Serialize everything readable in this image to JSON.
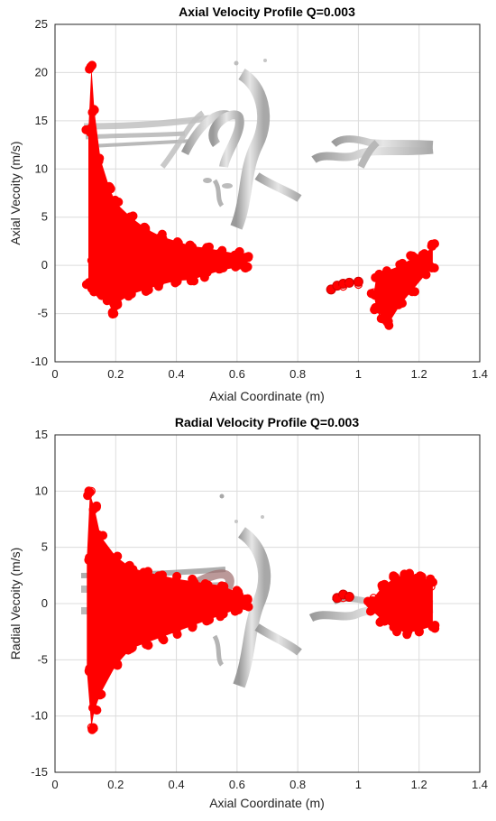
{
  "chart_data": [
    {
      "type": "scatter",
      "title": "Axial Velocity Profile Q=0.003",
      "xlabel": "Axial Coordinate (m)",
      "ylabel": "Axial Vecoity (m/s)",
      "xlim": [
        0,
        1.4
      ],
      "ylim": [
        -10,
        25
      ],
      "xticks": [
        0,
        0.2,
        0.4,
        0.6,
        0.8,
        1,
        1.2,
        1.4
      ],
      "xtick_labels": [
        "0",
        "0.2",
        "0.4",
        "0.6",
        "0.8",
        "1",
        "1.2",
        "1.4"
      ],
      "yticks": [
        -10,
        -5,
        0,
        5,
        10,
        15,
        20,
        25
      ],
      "ytick_labels": [
        "-10",
        "-5",
        "0",
        "5",
        "10",
        "15",
        "20",
        "25"
      ],
      "grid": true,
      "marker_color": "#ff0000",
      "vortex_color": "#c8c8c8",
      "series": [
        {
          "marker": "o",
          "x": [
            0.12,
            0.12,
            0.13,
            0.15,
            0.18,
            0.2,
            0.25,
            0.3,
            0.35,
            0.4,
            0.45,
            0.5,
            0.55,
            0.6,
            0.62,
            0.19,
            0.95,
            1.0,
            1.05,
            1.08,
            1.1,
            1.12,
            1.15,
            1.18,
            1.2,
            1.22,
            1.24
          ],
          "y": [
            20.6,
            0.5,
            12.0,
            9.5,
            6.5,
            5.0,
            3.5,
            2.5,
            2.0,
            1.5,
            1.2,
            1.0,
            0.8,
            0.5,
            0.5,
            -4.8,
            -2.2,
            -2.0,
            -2.8,
            -5.0,
            -5.8,
            -4.0,
            -1.5,
            0.0,
            0.5,
            1.0,
            2.0
          ],
          "envelope_upper": [
            [
              0.11,
              14.0
            ],
            [
              0.12,
              20.6
            ],
            [
              0.13,
              16.0
            ],
            [
              0.15,
              11.0
            ],
            [
              0.18,
              8.0
            ],
            [
              0.2,
              6.5
            ],
            [
              0.25,
              5.0
            ],
            [
              0.3,
              3.8
            ],
            [
              0.35,
              3.0
            ],
            [
              0.4,
              2.5
            ],
            [
              0.45,
              2.0
            ],
            [
              0.5,
              1.8
            ],
            [
              0.55,
              1.5
            ],
            [
              0.6,
              1.2
            ],
            [
              0.635,
              1.0
            ]
          ],
          "envelope_lower": [
            [
              0.635,
              0.0
            ],
            [
              0.6,
              -0.2
            ],
            [
              0.55,
              -0.5
            ],
            [
              0.5,
              -1.0
            ],
            [
              0.45,
              -1.5
            ],
            [
              0.4,
              -1.6
            ],
            [
              0.35,
              -2.0
            ],
            [
              0.3,
              -2.5
            ],
            [
              0.25,
              -3.0
            ],
            [
              0.2,
              -4.0
            ],
            [
              0.19,
              -4.8
            ],
            [
              0.17,
              -3.5
            ],
            [
              0.15,
              -3.0
            ],
            [
              0.13,
              -2.5
            ],
            [
              0.11,
              -2.0
            ]
          ],
          "cluster2_upper": [
            [
              1.06,
              -1.0
            ],
            [
              1.1,
              -0.5
            ],
            [
              1.14,
              0.0
            ],
            [
              1.18,
              0.8
            ],
            [
              1.22,
              1.2
            ],
            [
              1.245,
              2.0
            ]
          ],
          "cluster2_lower": [
            [
              1.245,
              0.0
            ],
            [
              1.22,
              -1.0
            ],
            [
              1.18,
              -2.5
            ],
            [
              1.14,
              -4.0
            ],
            [
              1.1,
              -6.0
            ],
            [
              1.08,
              -5.5
            ],
            [
              1.06,
              -4.5
            ],
            [
              1.05,
              -3.0
            ]
          ],
          "cluster3": [
            [
              0.91,
              -2.5
            ],
            [
              0.93,
              -2.1
            ],
            [
              0.95,
              -1.9
            ],
            [
              0.97,
              -1.8
            ],
            [
              1.0,
              -1.7
            ]
          ]
        }
      ]
    },
    {
      "type": "scatter",
      "title": "Radial Velocity Profile Q=0.003",
      "xlabel": "Axial Coordinate (m)",
      "ylabel": "Radial Vecoity (m/s)",
      "xlim": [
        0,
        1.4
      ],
      "ylim": [
        -15,
        15
      ],
      "xticks": [
        0,
        0.2,
        0.4,
        0.6,
        0.8,
        1,
        1.2,
        1.4
      ],
      "xtick_labels": [
        "0",
        "0.2",
        "0.4",
        "0.6",
        "0.8",
        "1",
        "1.2",
        "1.4"
      ],
      "yticks": [
        -15,
        -10,
        -5,
        0,
        5,
        10,
        15
      ],
      "ytick_labels": [
        "-15",
        "-10",
        "-5",
        "0",
        "5",
        "10",
        "15"
      ],
      "grid": true,
      "marker_color": "#ff0000",
      "vortex_color": "#c8c8c8",
      "series": [
        {
          "marker": "o",
          "x": [
            0.12,
            0.12,
            0.13,
            0.15,
            0.2,
            0.25,
            0.3,
            0.35,
            0.4,
            0.45,
            0.5,
            0.55,
            0.6,
            0.95,
            1.05,
            1.1,
            1.15,
            1.2,
            1.24
          ],
          "y": [
            10.0,
            -11.0,
            8.5,
            6.0,
            4.0,
            3.0,
            2.5,
            2.2,
            1.8,
            1.6,
            1.2,
            1.0,
            0.5,
            0.5,
            0.5,
            1.5,
            2.5,
            2.0,
            1.5
          ],
          "envelope_upper": [
            [
              0.105,
              4.0
            ],
            [
              0.115,
              9.8
            ],
            [
              0.13,
              8.5
            ],
            [
              0.15,
              6.0
            ],
            [
              0.2,
              4.2
            ],
            [
              0.25,
              3.2
            ],
            [
              0.3,
              2.8
            ],
            [
              0.35,
              2.5
            ],
            [
              0.4,
              2.2
            ],
            [
              0.45,
              2.0
            ],
            [
              0.5,
              1.8
            ],
            [
              0.55,
              1.6
            ],
            [
              0.6,
              1.0
            ],
            [
              0.63,
              0.4
            ]
          ],
          "envelope_lower": [
            [
              0.63,
              -0.2
            ],
            [
              0.6,
              -0.5
            ],
            [
              0.55,
              -1.0
            ],
            [
              0.5,
              -1.5
            ],
            [
              0.45,
              -2.0
            ],
            [
              0.4,
              -2.5
            ],
            [
              0.35,
              -3.0
            ],
            [
              0.3,
              -3.5
            ],
            [
              0.25,
              -4.0
            ],
            [
              0.2,
              -5.5
            ],
            [
              0.15,
              -8.0
            ],
            [
              0.13,
              -9.5
            ],
            [
              0.12,
              -11.0
            ],
            [
              0.105,
              -6.0
            ]
          ],
          "cluster2_upper": [
            [
              1.04,
              0.2
            ],
            [
              1.08,
              1.5
            ],
            [
              1.12,
              2.3
            ],
            [
              1.16,
              2.6
            ],
            [
              1.2,
              2.4
            ],
            [
              1.245,
              2.0
            ]
          ],
          "cluster2_lower": [
            [
              1.245,
              -2.0
            ],
            [
              1.2,
              -2.4
            ],
            [
              1.16,
              -2.6
            ],
            [
              1.12,
              -2.3
            ],
            [
              1.08,
              -1.5
            ],
            [
              1.04,
              -0.5
            ]
          ],
          "cluster3": [
            [
              0.93,
              0.5
            ],
            [
              0.95,
              0.8
            ],
            [
              0.97,
              0.6
            ]
          ]
        }
      ]
    }
  ]
}
